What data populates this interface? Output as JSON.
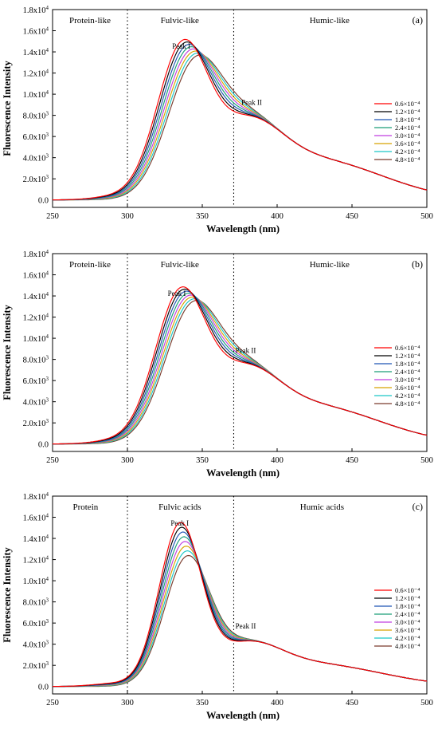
{
  "colors": [
    "#ff0000",
    "#000000",
    "#1f55b4",
    "#1a9d77",
    "#c13fe0",
    "#d7a200",
    "#1ac7c7",
    "#7a3b2c"
  ],
  "chart_data": [
    {
      "type": "line",
      "panel": "(a)",
      "xlabel": "Wavelength (nm)",
      "ylabel": "Fluorescence Intensity",
      "xlim": [
        250,
        500
      ],
      "ylim": [
        -700,
        18000
      ],
      "xticks": [
        "250",
        "300",
        "350",
        "400",
        "450",
        "500"
      ],
      "yticks": [
        {
          "value": 0,
          "label": "0.0"
        },
        {
          "value": 2000,
          "label": "2.0x10^3"
        },
        {
          "value": 4000,
          "label": "4.0x10^3"
        },
        {
          "value": 6000,
          "label": "6.0x10^3"
        },
        {
          "value": 8000,
          "label": "8.0x10^3"
        },
        {
          "value": 10000,
          "label": "1.0x10^4"
        },
        {
          "value": 12000,
          "label": "1.2x10^4"
        },
        {
          "value": 14000,
          "label": "1.4x10^4"
        },
        {
          "value": 16000,
          "label": "1.6x10^4"
        },
        {
          "value": 18000,
          "label": "1.8x10^4"
        }
      ],
      "regions": [
        {
          "label": "Protein-like",
          "x": 275
        },
        {
          "label": "Fulvic-like",
          "x": 335
        },
        {
          "label": "Humic-like",
          "x": 435
        }
      ],
      "dividers": [
        300,
        371
      ],
      "peaks": [
        {
          "label": "Peak I",
          "x": 336,
          "y": 14300
        },
        {
          "label": "Peak II",
          "x": 383,
          "y": 9000
        }
      ],
      "series_params": {
        "p1": [
          13800,
          11300
        ],
        "lambda1": [
          336.5,
          344
        ],
        "s1": [
          17,
          18
        ],
        "p2": 8400,
        "lambda2": 380
      },
      "series": [
        {
          "name": "0.6×10⁻⁴"
        },
        {
          "name": "1.2×10⁻⁴"
        },
        {
          "name": "1.8×10⁻⁴"
        },
        {
          "name": "2.4×10⁻⁴"
        },
        {
          "name": "3.0×10⁻⁴"
        },
        {
          "name": "3.6×10⁻⁴"
        },
        {
          "name": "4.2×10⁻⁴"
        },
        {
          "name": "4.8×10⁻⁴"
        }
      ]
    },
    {
      "type": "line",
      "panel": "(b)",
      "xlabel": "Wavelength (nm)",
      "ylabel": "Fluorescence Intensity",
      "xlim": [
        250,
        500
      ],
      "ylim": [
        -700,
        18000
      ],
      "xticks": [
        "250",
        "300",
        "350",
        "400",
        "450",
        "500"
      ],
      "yticks": [
        {
          "value": 0,
          "label": "0.0"
        },
        {
          "value": 2000,
          "label": "2.0x10^3"
        },
        {
          "value": 4000,
          "label": "4.0x10^3"
        },
        {
          "value": 6000,
          "label": "6.0x10^3"
        },
        {
          "value": 8000,
          "label": "8.0x10^3"
        },
        {
          "value": 10000,
          "label": "1.0x10^4"
        },
        {
          "value": 12000,
          "label": "1.2x10^4"
        },
        {
          "value": 14000,
          "label": "1.4x10^4"
        },
        {
          "value": 16000,
          "label": "1.6x10^4"
        },
        {
          "value": 18000,
          "label": "1.8x10^4"
        }
      ],
      "regions": [
        {
          "label": "Protein-like",
          "x": 275
        },
        {
          "label": "Fulvic-like",
          "x": 335
        },
        {
          "label": "Humic-like",
          "x": 435
        }
      ],
      "dividers": [
        300,
        371
      ],
      "peaks": [
        {
          "label": "Peak I",
          "x": 333,
          "y": 14000
        },
        {
          "label": "Peak II",
          "x": 379,
          "y": 8600
        }
      ],
      "series_params": {
        "p1": [
          13500,
          11300
        ],
        "lambda1": [
          335,
          342
        ],
        "s1": [
          17,
          18
        ],
        "p2": 8000,
        "lambda2": 378
      },
      "series": [
        {
          "name": "0.6×10⁻⁴"
        },
        {
          "name": "1.2×10⁻⁴"
        },
        {
          "name": "1.8×10⁻⁴"
        },
        {
          "name": "2.4×10⁻⁴"
        },
        {
          "name": "3.0×10⁻⁴"
        },
        {
          "name": "3.6×10⁻⁴"
        },
        {
          "name": "4.2×10⁻⁴"
        },
        {
          "name": "4.8×10⁻⁴"
        }
      ]
    },
    {
      "type": "line",
      "panel": "(c)",
      "xlabel": "Wavelength (nm)",
      "ylabel": "Fluorescence Intensity",
      "xlim": [
        250,
        500
      ],
      "ylim": [
        -700,
        18000
      ],
      "xticks": [
        "250",
        "300",
        "350",
        "400",
        "450",
        "500"
      ],
      "yticks": [
        {
          "value": 0,
          "label": "0.0"
        },
        {
          "value": 2000,
          "label": "2.0x10^3"
        },
        {
          "value": 4000,
          "label": "4.0x10^3"
        },
        {
          "value": 6000,
          "label": "6.0x10^3"
        },
        {
          "value": 8000,
          "label": "8.0x10^3"
        },
        {
          "value": 10000,
          "label": "1.0x10^4"
        },
        {
          "value": 12000,
          "label": "1.2x10^4"
        },
        {
          "value": 14000,
          "label": "1.4x10^4"
        },
        {
          "value": 16000,
          "label": "1.6x10^4"
        },
        {
          "value": 18000,
          "label": "1.8x10^4"
        }
      ],
      "regions": [
        {
          "label": "Protein",
          "x": 272
        },
        {
          "label": "Fulvic acids",
          "x": 335
        },
        {
          "label": "Humic acids",
          "x": 430
        }
      ],
      "dividers": [
        300,
        371
      ],
      "peaks": [
        {
          "label": "Peak I",
          "x": 335,
          "y": 15200
        },
        {
          "label": "Peak II",
          "x": 379,
          "y": 5500
        }
      ],
      "series_params": {
        "p1": [
          14800,
          11400
        ],
        "lambda1": [
          335,
          339.5
        ],
        "s1": [
          14,
          15
        ],
        "p2": 4700,
        "lambda2": 379
      },
      "series": [
        {
          "name": "0.6×10⁻⁴"
        },
        {
          "name": "1.2×10⁻⁴"
        },
        {
          "name": "1.8×10⁻⁴"
        },
        {
          "name": "2.4×10⁻⁴"
        },
        {
          "name": "3.0×10⁻⁴"
        },
        {
          "name": "3.6×10⁻⁴"
        },
        {
          "name": "4.2×10⁻⁴"
        },
        {
          "name": "4.8×10⁻⁴"
        }
      ]
    }
  ]
}
